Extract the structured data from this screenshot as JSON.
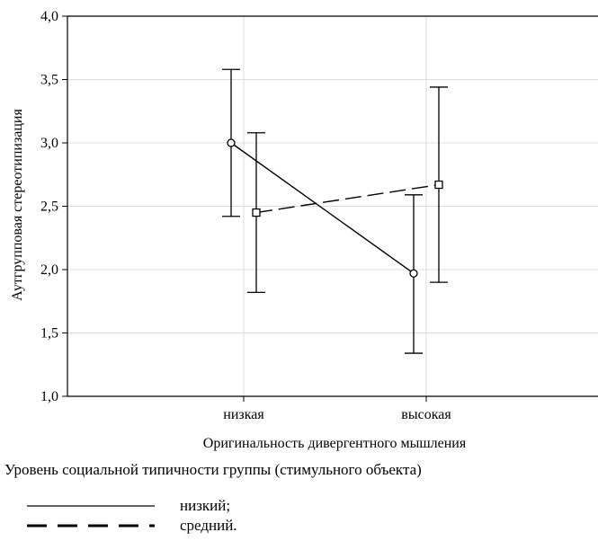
{
  "chart_data": {
    "type": "line",
    "categories": [
      "низкая",
      "высокая"
    ],
    "xlabel": "Оригинальность дивергентного мышления",
    "ylabel": "Аутгрупповая стереотипизация",
    "ylim": [
      1.0,
      4.0
    ],
    "yticks": [
      "1,0",
      "1,5",
      "2,0",
      "2,5",
      "3,0",
      "3,5",
      "4,0"
    ],
    "grid": true,
    "legend_title": "Уровень социальной типичности группы (стимульного объекта)",
    "legend_placement": "bottom",
    "series": [
      {
        "name": "низкий;",
        "marker": "circle",
        "line": "solid",
        "values": [
          3.0,
          1.97
        ],
        "error_low": [
          2.42,
          1.34
        ],
        "error_high": [
          3.58,
          2.59
        ]
      },
      {
        "name": "средний.",
        "marker": "square",
        "line": "dashed",
        "values": [
          2.45,
          2.67
        ],
        "error_low": [
          1.82,
          1.9
        ],
        "error_high": [
          3.08,
          3.44
        ]
      }
    ],
    "colors": {
      "ink": "#000000",
      "grid": "#dcdcdc"
    }
  }
}
